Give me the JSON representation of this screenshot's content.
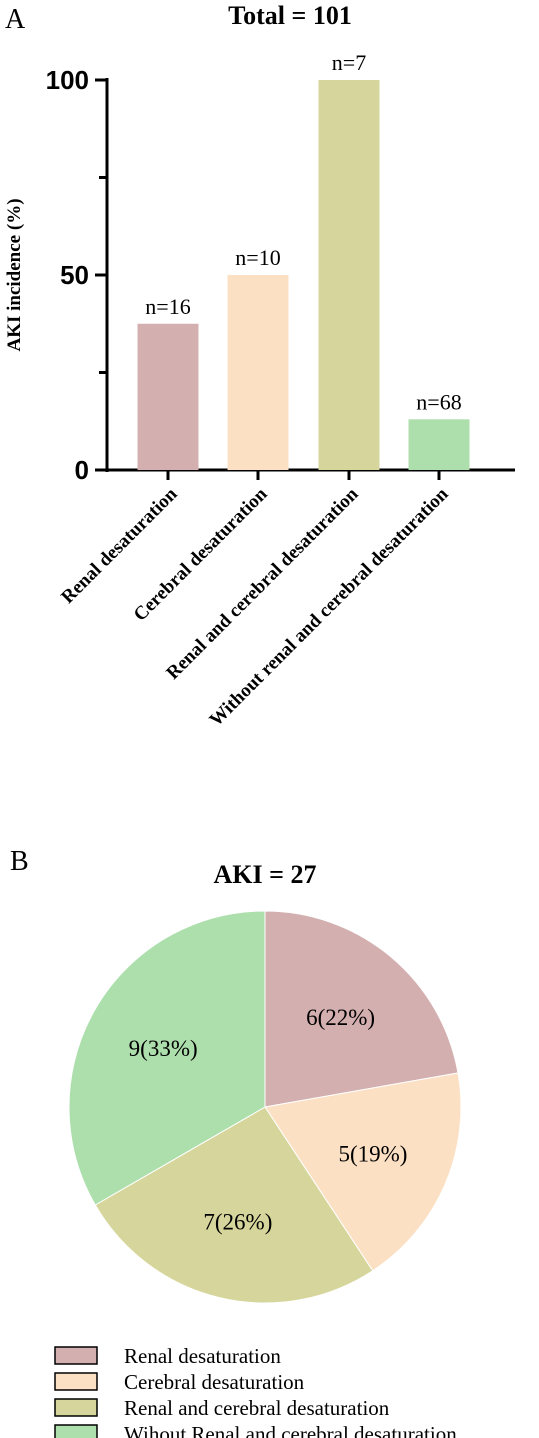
{
  "chart_data": [
    {
      "panel_label": "A",
      "type": "bar",
      "title": "Total = 101",
      "xlabel": "",
      "ylabel": "AKI incidence (%)",
      "ylim": [
        0,
        100
      ],
      "yticks": [
        "0",
        "50",
        "100"
      ],
      "grid": false,
      "categories": [
        "Renal desaturation",
        "Cerebral desaturation",
        "Renal and cerebral desaturation",
        "Without renal and cerebral desaturation"
      ],
      "values": [
        37.5,
        50,
        100,
        13
      ],
      "data_labels": [
        "n=16",
        "n=10",
        "n=7",
        "n=68"
      ],
      "colors": [
        "#d4afaf",
        "#fce0c4",
        "#d6d69c",
        "#addfad"
      ]
    },
    {
      "panel_label": "B",
      "type": "pie",
      "title": "AKI = 27",
      "slices": [
        {
          "label": "Renal desaturation",
          "value": 6,
          "text": "6(22%)",
          "color": "#d4afaf"
        },
        {
          "label": "Cerebral desaturation",
          "value": 5,
          "text": "5(19%)",
          "color": "#fce0c4"
        },
        {
          "label": "Renal and cerebral desaturation",
          "value": 7,
          "text": "7(26%)",
          "color": "#d6d69c"
        },
        {
          "label": "Wihout Renal and cerebral desaturation",
          "value": 9,
          "text": "9(33%)",
          "color": "#addfad"
        }
      ],
      "legend_position": "bottom"
    }
  ]
}
